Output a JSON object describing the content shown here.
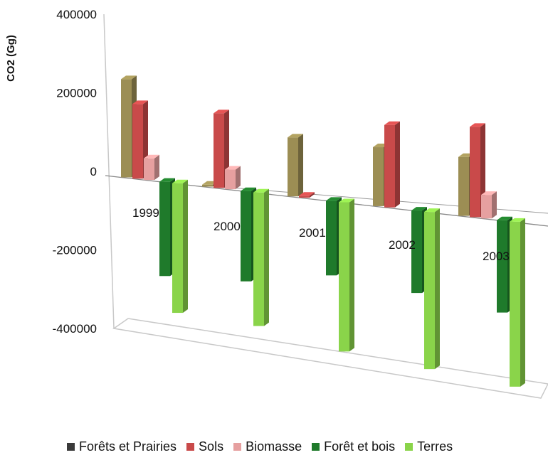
{
  "chart_data": {
    "type": "bar",
    "title": "",
    "xlabel": "",
    "ylabel": "CO2 (Gg)",
    "ylim": [
      -400000,
      400000
    ],
    "yticks": [
      400000,
      200000,
      0,
      -200000,
      -400000
    ],
    "ytick_labels": [
      "400000",
      "200000",
      "0",
      "-200000",
      "-400000"
    ],
    "categories": [
      "1999",
      "2000",
      "2001",
      "2002",
      "2003"
    ],
    "legend_position": "bottom",
    "grid": false,
    "series": [
      {
        "name": "Forêts et Prairies",
        "color": "#9c8e54",
        "legend_color": "#3a3a3a",
        "values": [
          250000,
          5000,
          150000,
          150000,
          150000
        ]
      },
      {
        "name": "Sols",
        "color": "#c94a4a",
        "values": [
          190000,
          190000,
          5000,
          210000,
          230000
        ]
      },
      {
        "name": "Biomasse",
        "color": "#e6a0a0",
        "values": [
          55000,
          50000,
          0,
          0,
          60000
        ]
      },
      {
        "name": "Forêt et bois",
        "color": "#1f7a2b",
        "values": [
          -240000,
          -230000,
          -190000,
          -210000,
          -235000
        ]
      },
      {
        "name": "Terres",
        "color": "#8ad44a",
        "values": [
          -330000,
          -340000,
          -380000,
          -400000,
          -420000
        ]
      }
    ]
  }
}
